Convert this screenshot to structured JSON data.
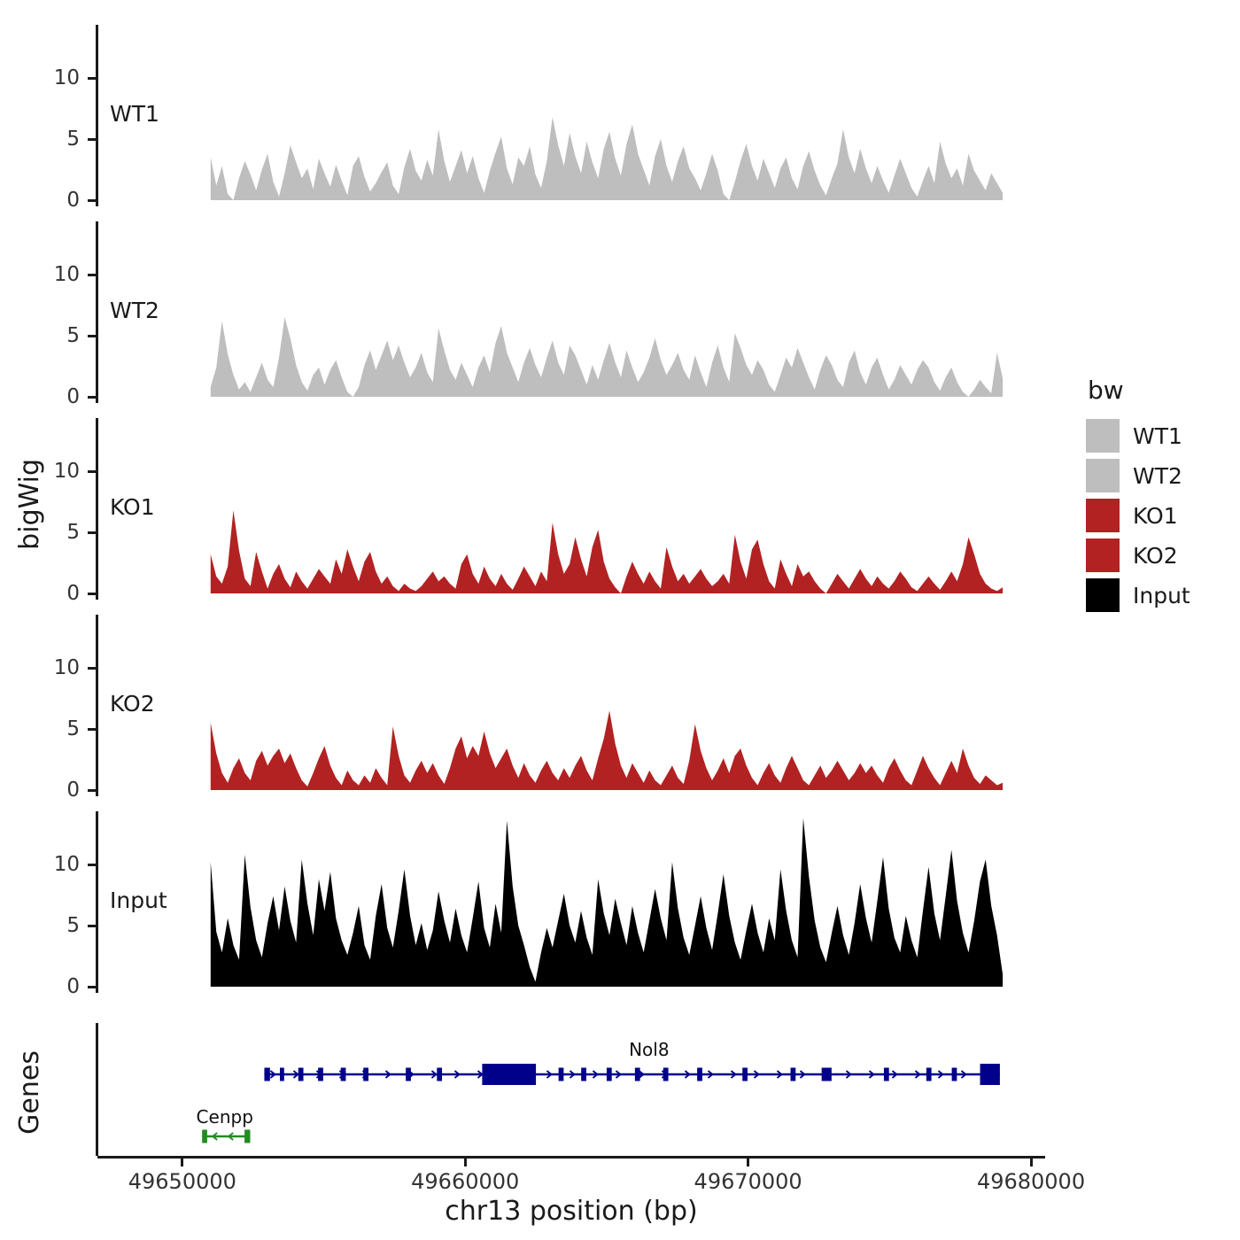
{
  "figure": {
    "y_axis_label": "bigWig",
    "genes_label": "Genes",
    "x_axis_title": "chr13 position (bp)",
    "y_tick_labels": [
      "10",
      "5",
      "0"
    ],
    "x_tick_labels": [
      "49650000",
      "49660000",
      "49670000",
      "49680000"
    ]
  },
  "legend": {
    "title": "bw",
    "items": [
      {
        "label": "WT1",
        "color": "#bebebe"
      },
      {
        "label": "WT2",
        "color": "#bebebe"
      },
      {
        "label": "KO1",
        "color": "#b22222"
      },
      {
        "label": "KO2",
        "color": "#b22222"
      },
      {
        "label": "Input",
        "color": "#000000"
      }
    ]
  },
  "chart_data": {
    "type": "area",
    "title": "",
    "xlabel": "chr13 position (bp)",
    "ylabel": "bigWig",
    "x_axis": {
      "bp_min": 49647000,
      "bp_max": 49680500,
      "tick_values": [
        49650000,
        49660000,
        49670000,
        49680000
      ]
    },
    "y_ticks": [
      0,
      5,
      10
    ],
    "ylim": [
      0,
      14
    ],
    "signal_range": [
      49651000,
      49679000
    ],
    "tracks": [
      {
        "name": "WT1",
        "color": "#bebebe",
        "values": [
          3.5,
          1.2,
          2.8,
          0.5,
          0,
          1.8,
          3.2,
          2.1,
          0.8,
          2.5,
          3.8,
          1.5,
          0.3,
          2.2,
          4.5,
          3.1,
          1.8,
          2.6,
          0.9,
          3.4,
          2.2,
          1.1,
          2.9,
          1.6,
          0.4,
          2.8,
          3.6,
          1.9,
          0.7,
          1.4,
          2.3,
          3.1,
          1.2,
          0.5,
          2.7,
          4.2,
          2.4,
          1.6,
          3.3,
          2.0,
          5.8,
          3.2,
          1.5,
          2.8,
          4.1,
          2.2,
          3.6,
          1.8,
          0.6,
          2.4,
          3.9,
          5.2,
          2.6,
          1.3,
          3.5,
          2.8,
          4.4,
          2.1,
          1.0,
          3.2,
          6.8,
          4.5,
          2.8,
          5.5,
          3.6,
          2.2,
          4.8,
          3.1,
          1.8,
          4.2,
          5.6,
          3.4,
          2.0,
          4.6,
          6.2,
          3.8,
          2.5,
          1.2,
          3.6,
          5.0,
          2.8,
          1.5,
          3.2,
          4.4,
          2.6,
          1.8,
          0.8,
          2.2,
          3.8,
          2.4,
          0.5,
          0,
          1.5,
          3.2,
          4.6,
          2.8,
          1.6,
          3.4,
          2.2,
          1.0,
          2.6,
          3.5,
          1.8,
          0.9,
          2.8,
          4.0,
          2.4,
          1.2,
          0.4,
          1.8,
          3.0,
          5.8,
          3.5,
          2.2,
          4.2,
          2.6,
          1.4,
          2.8,
          1.6,
          0.6,
          2.0,
          3.4,
          2.2,
          1.0,
          0.3,
          1.6,
          2.8,
          1.4,
          4.8,
          3.0,
          1.8,
          2.6,
          1.2,
          3.8,
          2.4,
          1.6,
          0.8,
          2.2,
          1.4,
          0.6
        ]
      },
      {
        "name": "WT2",
        "color": "#bebebe",
        "values": [
          0.8,
          2.4,
          6.2,
          3.5,
          1.8,
          0.6,
          1.2,
          0.4,
          1.6,
          2.8,
          1.4,
          0.8,
          3.2,
          6.5,
          4.8,
          2.6,
          1.2,
          0.5,
          1.8,
          2.4,
          1.0,
          2.2,
          3.0,
          1.6,
          0.4,
          0,
          0.8,
          2.6,
          3.8,
          2.2,
          3.4,
          4.6,
          3.0,
          4.2,
          2.8,
          1.6,
          2.4,
          3.6,
          2.0,
          1.2,
          5.6,
          3.8,
          2.2,
          1.4,
          2.8,
          1.8,
          0.8,
          2.4,
          3.4,
          2.0,
          4.4,
          5.8,
          3.6,
          2.4,
          1.2,
          2.8,
          4.0,
          2.6,
          1.6,
          3.2,
          4.6,
          2.8,
          1.8,
          4.2,
          3.4,
          2.2,
          1.0,
          2.6,
          1.4,
          3.0,
          4.4,
          2.8,
          1.6,
          3.8,
          2.4,
          1.2,
          2.0,
          3.2,
          4.8,
          3.0,
          1.8,
          2.6,
          3.6,
          2.2,
          1.4,
          3.4,
          2.0,
          0.8,
          2.8,
          4.2,
          2.4,
          1.2,
          5.2,
          4.0,
          2.6,
          1.8,
          3.0,
          2.2,
          1.0,
          0.4,
          1.8,
          3.2,
          2.4,
          4.0,
          2.8,
          1.6,
          0.6,
          2.2,
          3.4,
          2.6,
          1.4,
          0.8,
          2.8,
          3.8,
          2.0,
          1.0,
          2.4,
          3.2,
          1.8,
          0.6,
          1.4,
          2.6,
          1.8,
          1.0,
          2.2,
          3.0,
          2.4,
          1.2,
          0.5,
          1.6,
          2.4,
          1.2,
          0.4,
          0,
          0.6,
          1.4,
          0.8,
          0.3,
          3.6,
          1.5
        ]
      },
      {
        "name": "KO1",
        "color": "#b22222",
        "values": [
          3.2,
          1.4,
          0.8,
          2.2,
          6.8,
          3.5,
          1.2,
          0.6,
          3.4,
          1.8,
          0.4,
          1.6,
          2.4,
          1.2,
          0.5,
          1.8,
          1.0,
          0.4,
          1.2,
          2.0,
          1.4,
          0.8,
          2.8,
          1.6,
          3.6,
          2.2,
          1.0,
          2.6,
          3.4,
          1.8,
          0.8,
          1.4,
          0.6,
          0.2,
          0.8,
          0.4,
          0.2,
          0.6,
          1.2,
          1.8,
          1.0,
          1.4,
          0.8,
          0.4,
          2.4,
          3.2,
          1.6,
          0.8,
          2.2,
          1.2,
          0.6,
          1.6,
          0.8,
          0.3,
          1.2,
          2.2,
          1.4,
          0.6,
          1.8,
          1.0,
          5.8,
          3.2,
          1.6,
          2.4,
          4.6,
          2.8,
          1.4,
          3.8,
          5.2,
          2.6,
          1.2,
          0.5,
          0,
          1.4,
          2.6,
          1.6,
          0.8,
          1.8,
          1.0,
          0.4,
          3.8,
          2.2,
          1.0,
          1.6,
          0.8,
          1.4,
          2.0,
          1.2,
          0.6,
          1.0,
          1.6,
          0.8,
          4.8,
          2.6,
          1.2,
          3.6,
          4.4,
          2.4,
          1.0,
          0.4,
          2.8,
          1.6,
          0.6,
          2.4,
          1.4,
          1.8,
          1.0,
          0.4,
          0,
          0.8,
          1.6,
          1.0,
          0.4,
          1.2,
          2.0,
          1.2,
          0.6,
          1.4,
          0.8,
          0.4,
          1.0,
          1.8,
          1.2,
          0.5,
          0.2,
          0.8,
          1.4,
          0.8,
          0.3,
          1.0,
          1.8,
          1.0,
          2.4,
          4.6,
          3.2,
          1.6,
          0.8,
          0.4,
          0.2,
          0.5
        ]
      },
      {
        "name": "KO2",
        "color": "#b22222",
        "values": [
          5.5,
          3.0,
          1.4,
          0.6,
          1.8,
          2.6,
          1.4,
          0.8,
          2.4,
          3.2,
          2.0,
          2.8,
          3.4,
          2.2,
          3.0,
          1.8,
          0.8,
          0.3,
          1.4,
          2.6,
          3.6,
          2.0,
          1.0,
          0.4,
          1.6,
          0.8,
          0.4,
          1.2,
          0.6,
          1.8,
          1.0,
          0.4,
          5.2,
          2.8,
          1.2,
          0.6,
          1.6,
          2.4,
          1.4,
          2.2,
          1.2,
          0.5,
          1.8,
          3.4,
          4.4,
          2.6,
          3.6,
          2.8,
          4.8,
          3.0,
          1.8,
          2.6,
          3.4,
          2.0,
          1.0,
          2.2,
          1.2,
          0.6,
          1.6,
          2.4,
          1.4,
          0.8,
          1.8,
          1.0,
          2.0,
          2.8,
          1.6,
          0.8,
          2.6,
          4.2,
          6.5,
          3.8,
          2.0,
          1.0,
          2.2,
          1.4,
          0.6,
          1.6,
          0.8,
          0.4,
          1.2,
          2.0,
          1.0,
          0.5,
          2.4,
          5.4,
          3.2,
          1.8,
          0.8,
          1.6,
          2.6,
          1.4,
          2.8,
          3.4,
          2.0,
          1.0,
          0.4,
          1.4,
          2.2,
          1.2,
          0.6,
          1.8,
          2.8,
          1.8,
          0.8,
          0.4,
          1.2,
          2.0,
          1.0,
          1.6,
          2.4,
          1.6,
          0.8,
          1.4,
          2.2,
          1.4,
          2.0,
          1.2,
          0.6,
          1.8,
          2.6,
          1.6,
          0.8,
          0.4,
          1.6,
          2.8,
          1.8,
          1.0,
          0.4,
          1.4,
          2.4,
          1.4,
          3.4,
          2.0,
          1.0,
          0.5,
          1.2,
          0.8,
          0.4,
          0.6
        ]
      },
      {
        "name": "Input",
        "color": "#000000",
        "values": [
          10.2,
          4.5,
          2.8,
          5.6,
          3.4,
          2.2,
          10.8,
          6.5,
          3.8,
          2.4,
          5.2,
          7.4,
          4.6,
          8.2,
          5.4,
          3.6,
          10.4,
          6.8,
          4.2,
          8.8,
          6.2,
          9.4,
          5.6,
          3.8,
          2.6,
          4.4,
          6.6,
          3.4,
          2.2,
          5.8,
          8.4,
          4.8,
          3.2,
          6.2,
          9.6,
          5.8,
          3.4,
          5.2,
          3.0,
          4.6,
          7.8,
          5.4,
          3.6,
          6.4,
          4.2,
          2.8,
          5.6,
          8.6,
          4.8,
          3.2,
          6.8,
          4.4,
          13.6,
          8.2,
          5.0,
          3.4,
          1.6,
          0.4,
          2.8,
          4.8,
          3.2,
          5.4,
          7.6,
          5.0,
          3.6,
          6.2,
          4.0,
          2.6,
          8.8,
          6.0,
          4.2,
          7.2,
          5.2,
          3.4,
          6.6,
          4.4,
          2.8,
          5.4,
          8.0,
          5.6,
          3.8,
          10.2,
          6.4,
          4.0,
          2.6,
          5.0,
          7.4,
          4.8,
          3.0,
          6.0,
          9.2,
          5.8,
          3.6,
          2.2,
          4.6,
          6.8,
          4.4,
          2.8,
          5.6,
          3.8,
          9.6,
          6.2,
          3.8,
          2.4,
          13.8,
          9.0,
          5.4,
          3.2,
          2.0,
          4.4,
          6.6,
          4.2,
          2.6,
          5.2,
          8.4,
          5.6,
          3.6,
          7.0,
          10.6,
          6.4,
          4.0,
          2.8,
          5.8,
          3.8,
          2.4,
          6.2,
          9.8,
          6.0,
          3.8,
          7.4,
          11.2,
          7.0,
          4.4,
          2.8,
          5.4,
          8.6,
          10.4,
          6.6,
          4.2,
          1.0
        ]
      }
    ],
    "genes": [
      {
        "name": "Nol8",
        "color": "#00008b",
        "strand": "+",
        "start": 49652900,
        "end": 49678900,
        "label_bp": 49666500,
        "exons": [
          [
            49652900,
            49653100
          ],
          [
            49653450,
            49653600
          ],
          [
            49654100,
            49654280
          ],
          [
            49654800,
            49654980
          ],
          [
            49655600,
            49655780
          ],
          [
            49656400,
            49656580
          ],
          [
            49657900,
            49658080
          ],
          [
            49659000,
            49659180
          ],
          [
            49660600,
            49662500
          ],
          [
            49663300,
            49663480
          ],
          [
            49664100,
            49664280
          ],
          [
            49665000,
            49665180
          ],
          [
            49666000,
            49666180
          ],
          [
            49667000,
            49667180
          ],
          [
            49668200,
            49668380
          ],
          [
            49669800,
            49669980
          ],
          [
            49671500,
            49671680
          ],
          [
            49672600,
            49672950
          ],
          [
            49674800,
            49674980
          ],
          [
            49676300,
            49676480
          ],
          [
            49677200,
            49677380
          ],
          [
            49678200,
            49678900
          ]
        ]
      },
      {
        "name": "Cenpp",
        "color": "#228b22",
        "strand": "-",
        "start": 49650700,
        "end": 49652400,
        "label_bp": 49651500,
        "exons": [
          [
            49650700,
            49650880
          ],
          [
            49652200,
            49652400
          ]
        ]
      }
    ]
  }
}
